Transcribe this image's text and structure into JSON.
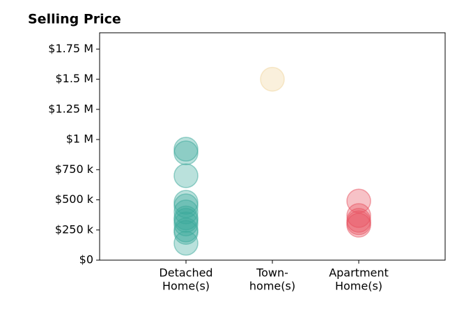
{
  "chart_data": {
    "type": "strip",
    "title": "Selling Price",
    "categories": [
      [
        "Detached",
        "Home(s)"
      ],
      [
        "Town-",
        "home(s)"
      ],
      [
        "Apartment",
        "Home(s)"
      ]
    ],
    "colors": [
      "#3aa89a",
      "#f0d49a",
      "#e8505e"
    ],
    "values": [
      [
        920000,
        890000,
        700000,
        480000,
        450000,
        400000,
        350000,
        330000,
        300000,
        250000,
        230000,
        140000
      ],
      [
        1500000
      ],
      [
        490000,
        370000,
        330000,
        310000,
        290000
      ]
    ],
    "ylim": [
      0,
      1885000
    ],
    "yticks": [
      {
        "value": 0,
        "label": "$0"
      },
      {
        "value": 250000,
        "label": "$250 k"
      },
      {
        "value": 500000,
        "label": "$500 k"
      },
      {
        "value": 750000,
        "label": "$750 k"
      },
      {
        "value": 1000000,
        "label": "$1 M"
      },
      {
        "value": 1250000,
        "label": "$1.25 M"
      },
      {
        "value": 1500000,
        "label": "$1.5 M"
      },
      {
        "value": 1750000,
        "label": "$1.75 M"
      }
    ]
  }
}
